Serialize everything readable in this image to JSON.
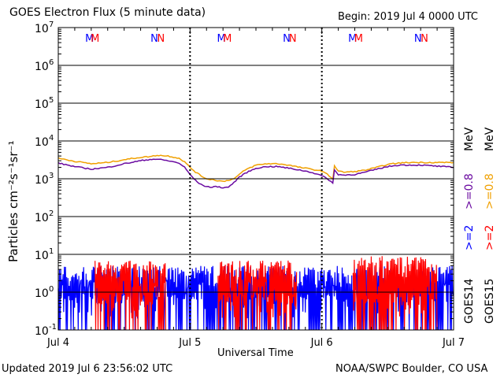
{
  "header": {
    "title": "GOES Electron Flux (5 minute data)",
    "begin": "Begin: 2019 Jul 4 0000 UTC"
  },
  "footer": {
    "updated": "Updated 2019 Jul  6 23:56:02 UTC",
    "credit": "NOAA/SWPC Boulder, CO USA"
  },
  "colors": {
    "goes15_gt2": "#ff0000",
    "goes14_gt2": "#0000ff",
    "goes15_gt08": "#f0a000",
    "goes14_gt08": "#6a0aa0",
    "axis": "#000000"
  },
  "chart_data": {
    "type": "line",
    "title": "GOES Electron Flux (5 minute data)",
    "xlabel": "Universal Time",
    "ylabel": "Particles cm⁻²s⁻¹sr⁻¹",
    "y_scale": "log",
    "ylim": [
      0.1,
      10000000
    ],
    "y_ticks": [
      {
        "value": 0.1,
        "base": "10",
        "exp": "-1"
      },
      {
        "value": 1,
        "base": "10",
        "exp": "0"
      },
      {
        "value": 10,
        "base": "10",
        "exp": "1"
      },
      {
        "value": 100,
        "base": "10",
        "exp": "2"
      },
      {
        "value": 1000,
        "base": "10",
        "exp": "3"
      },
      {
        "value": 10000,
        "base": "10",
        "exp": "4"
      },
      {
        "value": 100000,
        "base": "10",
        "exp": "5"
      },
      {
        "value": 1000000,
        "base": "10",
        "exp": "6"
      },
      {
        "value": 10000000,
        "base": "10",
        "exp": "7"
      }
    ],
    "x_ticks": [
      "Jul 4",
      "Jul 5",
      "Jul 6",
      "Jul 7"
    ],
    "xlim_hours": [
      0,
      72
    ],
    "threshold_line": 1000,
    "grid": "horizontal",
    "markers": [
      {
        "label": "M",
        "hour": 5.7,
        "color": "#0000ff"
      },
      {
        "label": "M",
        "hour": 6.7,
        "color": "#ff0000"
      },
      {
        "label": "N",
        "hour": 17.5,
        "color": "#0000ff"
      },
      {
        "label": "N",
        "hour": 18.7,
        "color": "#ff0000"
      },
      {
        "label": "M",
        "hour": 29.7,
        "color": "#0000ff"
      },
      {
        "label": "M",
        "hour": 30.8,
        "color": "#ff0000"
      },
      {
        "label": "N",
        "hour": 41.6,
        "color": "#0000ff"
      },
      {
        "label": "N",
        "hour": 42.7,
        "color": "#ff0000"
      },
      {
        "label": "M",
        "hour": 53.6,
        "color": "#0000ff"
      },
      {
        "label": "M",
        "hour": 54.7,
        "color": "#ff0000"
      },
      {
        "label": "N",
        "hour": 65.5,
        "color": "#0000ff"
      },
      {
        "label": "N",
        "hour": 66.7,
        "color": "#ff0000"
      }
    ],
    "legend": [
      {
        "text": "GOES15",
        "color": "#000000"
      },
      {
        "text": ">=2",
        "color": "#ff0000"
      },
      {
        "text": ">=0.8",
        "color": "#f0a000"
      },
      {
        "text": "MeV",
        "color": "#000000"
      },
      {
        "text": "GOES14",
        "color": "#000000"
      },
      {
        "text": ">=2",
        "color": "#0000ff"
      },
      {
        "text": ">=0.8",
        "color": "#6a0aa0"
      },
      {
        "text": "MeV",
        "color": "#000000"
      }
    ],
    "series": [
      {
        "name": "GOES15 >=0.8 MeV",
        "color": "#f0a000",
        "x": [
          0,
          3,
          6,
          9,
          12,
          15,
          17,
          18,
          20,
          22,
          23,
          24,
          25,
          26,
          27,
          28,
          30,
          32,
          33,
          34,
          36,
          38,
          40,
          42,
          44,
          46,
          47,
          48,
          49,
          50,
          50.3,
          51,
          52,
          54,
          56,
          58,
          60,
          62,
          64,
          66,
          68,
          70,
          72
        ],
        "y": [
          3500,
          2900,
          2500,
          2700,
          3200,
          3700,
          3900,
          4200,
          4000,
          3500,
          2800,
          2000,
          1500,
          1200,
          1000,
          950,
          850,
          1000,
          1300,
          1700,
          2300,
          2500,
          2500,
          2300,
          2000,
          1800,
          1700,
          1600,
          1300,
          1000,
          2200,
          1600,
          1500,
          1550,
          1700,
          2000,
          2400,
          2600,
          2700,
          2700,
          2700,
          2700,
          2700
        ]
      },
      {
        "name": "GOES14 >=0.8 MeV",
        "color": "#6a0aa0",
        "x": [
          0,
          3,
          6,
          9,
          12,
          15,
          17,
          18,
          20,
          22,
          23,
          24,
          25,
          26,
          27,
          28,
          29,
          30,
          31,
          32,
          33,
          34,
          36,
          38,
          40,
          42,
          44,
          46,
          47,
          48,
          49,
          50,
          50.3,
          51,
          52,
          54,
          56,
          58,
          60,
          62,
          64,
          66,
          68,
          70,
          72
        ],
        "y": [
          2600,
          2100,
          1800,
          2000,
          2500,
          3000,
          3300,
          3300,
          3000,
          2600,
          2000,
          1300,
          900,
          700,
          620,
          600,
          620,
          580,
          600,
          800,
          1100,
          1400,
          1900,
          2100,
          2100,
          1900,
          1700,
          1500,
          1350,
          1200,
          1000,
          780,
          1700,
          1300,
          1250,
          1300,
          1500,
          1800,
          2100,
          2300,
          2300,
          2300,
          2200,
          2100,
          2000
        ]
      },
      {
        "name": "GOES15 >=2 MeV",
        "color": "#ff0000",
        "noise": [
          {
            "from": 6.7,
            "to": 19.6,
            "hi": 7.0,
            "lo": 0.1
          },
          {
            "from": 29.1,
            "to": 43.4,
            "hi": 7.0,
            "lo": 0.1
          },
          {
            "from": 53.7,
            "to": 69.0,
            "hi": 9.0,
            "lo": 0.1
          }
        ]
      },
      {
        "name": "GOES14 >=2 MeV",
        "color": "#0000ff",
        "noise": [
          {
            "from": 0.0,
            "to": 72.0,
            "hi": 5.0,
            "lo": 0.1
          }
        ]
      }
    ]
  }
}
